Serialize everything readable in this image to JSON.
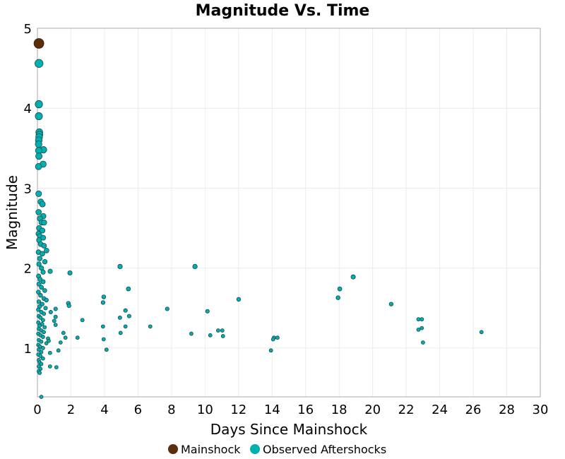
{
  "chart_data": {
    "type": "scatter",
    "title": "Magnitude Vs. Time",
    "xlabel": "Days Since Mainshock",
    "ylabel": "Magnitude",
    "xlim": [
      0,
      30
    ],
    "ylim": [
      0.39,
      5
    ],
    "xticks": [
      0,
      2,
      4,
      6,
      8,
      10,
      12,
      14,
      16,
      18,
      20,
      22,
      24,
      26,
      28,
      30
    ],
    "yticks": [
      1,
      2,
      3,
      4,
      5
    ],
    "grid": true,
    "legend": "bottom",
    "series": [
      {
        "name": "Mainshock",
        "color": "#5a2d0c",
        "points": [
          [
            0.0,
            4.81
          ]
        ]
      },
      {
        "name": "Observed Aftershocks",
        "color": "#00b0b0",
        "points": [
          [
            0.02,
            4.56
          ],
          [
            0.02,
            4.05
          ],
          [
            0.02,
            3.9
          ],
          [
            0.05,
            3.7
          ],
          [
            0.06,
            3.67
          ],
          [
            0.04,
            3.64
          ],
          [
            0.02,
            3.6
          ],
          [
            0.01,
            3.55
          ],
          [
            0.3,
            3.48
          ],
          [
            0.02,
            3.47
          ],
          [
            0.03,
            3.4
          ],
          [
            0.28,
            3.3
          ],
          [
            0.01,
            3.27
          ],
          [
            0.02,
            2.93
          ],
          [
            0.15,
            2.83
          ],
          [
            0.25,
            2.8
          ],
          [
            0.02,
            2.7
          ],
          [
            0.3,
            2.65
          ],
          [
            0.1,
            2.62
          ],
          [
            0.2,
            2.57
          ],
          [
            0.35,
            2.57
          ],
          [
            0.05,
            2.5
          ],
          [
            0.25,
            2.47
          ],
          [
            0.02,
            2.43
          ],
          [
            0.1,
            2.4
          ],
          [
            0.3,
            2.38
          ],
          [
            0.05,
            2.35
          ],
          [
            0.15,
            2.3
          ],
          [
            0.35,
            2.28
          ],
          [
            0.5,
            2.22
          ],
          [
            0.02,
            2.2
          ],
          [
            0.25,
            2.18
          ],
          [
            0.1,
            2.12
          ],
          [
            0.4,
            2.08
          ],
          [
            0.05,
            2.05
          ],
          [
            0.2,
            2.0
          ],
          [
            0.3,
            1.95
          ],
          [
            0.03,
            1.9
          ],
          [
            0.12,
            1.86
          ],
          [
            0.3,
            1.83
          ],
          [
            0.05,
            1.8
          ],
          [
            0.2,
            1.76
          ],
          [
            0.4,
            1.72
          ],
          [
            0.02,
            1.7
          ],
          [
            0.15,
            1.66
          ],
          [
            0.35,
            1.62
          ],
          [
            0.5,
            1.6
          ],
          [
            0.05,
            1.58
          ],
          [
            0.25,
            1.55
          ],
          [
            0.1,
            1.52
          ],
          [
            0.45,
            1.5
          ],
          [
            0.02,
            1.48
          ],
          [
            0.2,
            1.45
          ],
          [
            0.35,
            1.43
          ],
          [
            0.05,
            1.4
          ],
          [
            0.15,
            1.38
          ],
          [
            0.3,
            1.35
          ],
          [
            0.02,
            1.32
          ],
          [
            0.25,
            1.3
          ],
          [
            0.1,
            1.28
          ],
          [
            0.4,
            1.26
          ],
          [
            0.05,
            1.24
          ],
          [
            0.2,
            1.22
          ],
          [
            0.35,
            1.2
          ],
          [
            0.02,
            1.18
          ],
          [
            0.15,
            1.16
          ],
          [
            0.3,
            1.14
          ],
          [
            0.6,
            1.12
          ],
          [
            0.05,
            1.1
          ],
          [
            0.2,
            1.08
          ],
          [
            0.5,
            1.06
          ],
          [
            0.02,
            1.04
          ],
          [
            0.12,
            1.02
          ],
          [
            0.3,
            1.0
          ],
          [
            0.05,
            0.98
          ],
          [
            0.2,
            0.95
          ],
          [
            0.02,
            0.92
          ],
          [
            0.15,
            0.9
          ],
          [
            0.3,
            0.87
          ],
          [
            0.05,
            0.85
          ],
          [
            0.1,
            0.82
          ],
          [
            0.2,
            0.8
          ],
          [
            0.05,
            0.77
          ],
          [
            0.15,
            0.74
          ],
          [
            0.05,
            0.71
          ],
          [
            0.1,
            0.69
          ],
          [
            0.2,
            0.39
          ],
          [
            0.72,
            1.96
          ],
          [
            1.9,
            1.94
          ],
          [
            4.89,
            2.02
          ],
          [
            9.36,
            2.02
          ],
          [
            18.8,
            1.89
          ],
          [
            18.0,
            1.74
          ],
          [
            5.39,
            1.74
          ],
          [
            17.9,
            1.63
          ],
          [
            3.92,
            1.64
          ],
          [
            3.88,
            1.57
          ],
          [
            1.81,
            1.56
          ],
          [
            1.85,
            1.53
          ],
          [
            11.97,
            1.61
          ],
          [
            21.07,
            1.55
          ],
          [
            7.71,
            1.49
          ],
          [
            10.11,
            1.46
          ],
          [
            5.22,
            1.47
          ],
          [
            5.44,
            1.4
          ],
          [
            4.89,
            1.38
          ],
          [
            2.65,
            1.35
          ],
          [
            1.05,
            1.39
          ],
          [
            0.97,
            1.34
          ],
          [
            1.05,
            1.29
          ],
          [
            1.05,
            1.49
          ],
          [
            0.76,
            1.45
          ],
          [
            22.7,
            1.36
          ],
          [
            22.9,
            1.36
          ],
          [
            3.88,
            1.27
          ],
          [
            5.22,
            1.27
          ],
          [
            6.7,
            1.27
          ],
          [
            22.9,
            1.25
          ],
          [
            22.7,
            1.23
          ],
          [
            10.75,
            1.22
          ],
          [
            11.0,
            1.22
          ],
          [
            4.93,
            1.19
          ],
          [
            9.15,
            1.18
          ],
          [
            10.28,
            1.16
          ],
          [
            11.04,
            1.15
          ],
          [
            26.46,
            1.2
          ],
          [
            1.52,
            1.19
          ],
          [
            1.64,
            1.13
          ],
          [
            2.36,
            1.13
          ],
          [
            3.92,
            1.11
          ],
          [
            14.08,
            1.13
          ],
          [
            14.29,
            1.13
          ],
          [
            14.03,
            1.11
          ],
          [
            22.97,
            1.07
          ],
          [
            1.35,
            1.07
          ],
          [
            0.64,
            1.09
          ],
          [
            4.09,
            0.98
          ],
          [
            1.22,
            0.97
          ],
          [
            13.9,
            0.97
          ],
          [
            0.72,
            0.94
          ],
          [
            0.72,
            0.77
          ],
          [
            1.1,
            0.76
          ]
        ]
      }
    ]
  }
}
